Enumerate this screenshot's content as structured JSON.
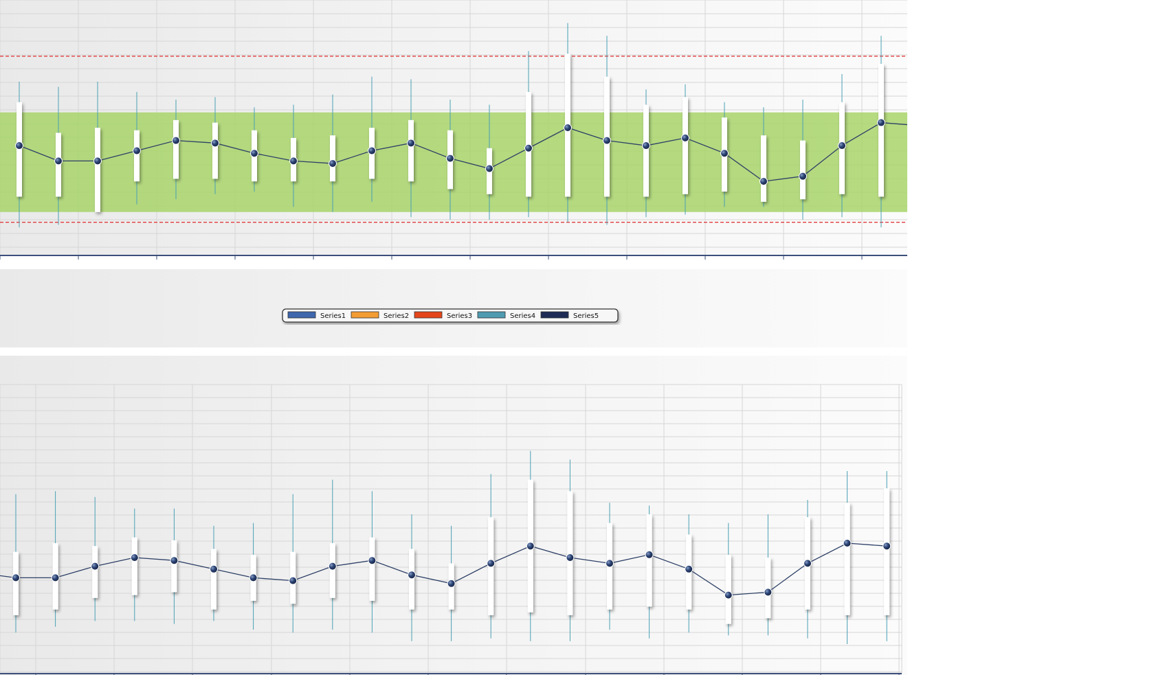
{
  "colors": {
    "band": "#a8d46a",
    "limit_line": "#e03c3c",
    "series_line": "#2d3f66",
    "marker_fill": "#2d4576",
    "whisker": "#4aa0b4",
    "box": "#ffffff",
    "grid": "#d6d6d6",
    "axis": "#3b4f7a"
  },
  "legend": {
    "items": [
      {
        "label": "Series1",
        "color": "#3f67ad"
      },
      {
        "label": "Series2",
        "color": "#f39c34"
      },
      {
        "label": "Series3",
        "color": "#e4461b"
      },
      {
        "label": "Series4",
        "color": "#4e9bb0"
      },
      {
        "label": "Series5",
        "color": "#1f2b55"
      }
    ]
  },
  "chart_data": [
    {
      "type": "line",
      "series_type": "box-plot with mean line",
      "x": [
        1,
        2,
        3,
        4,
        5,
        6,
        7,
        8,
        9,
        10,
        11,
        12,
        13,
        14,
        15,
        16,
        17,
        18,
        19,
        20,
        21,
        22,
        23
      ],
      "ylim": [
        0,
        100
      ],
      "grid": true,
      "band": [
        17,
        56
      ],
      "limits": [
        13,
        78
      ],
      "series": [
        {
          "role": "mean",
          "values": [
            43,
            37,
            37,
            41,
            45,
            44,
            40,
            37,
            36,
            41,
            44,
            38,
            34,
            42,
            50,
            45,
            43,
            46,
            40,
            29,
            31,
            43,
            52
          ]
        },
        {
          "role": "box_low",
          "values": [
            23,
            23,
            17,
            29,
            30,
            30,
            29,
            29,
            29,
            30,
            29,
            26,
            24,
            23,
            23,
            23,
            23,
            24,
            25,
            21,
            22,
            24,
            23
          ]
        },
        {
          "role": "box_high",
          "values": [
            60,
            48,
            50,
            49,
            53,
            52,
            49,
            46,
            47,
            50,
            53,
            49,
            42,
            64,
            79,
            70,
            59,
            62,
            54,
            47,
            45,
            60,
            75
          ]
        },
        {
          "role": "whisker_low",
          "values": [
            11,
            12,
            19,
            20,
            22,
            24,
            25,
            19,
            17,
            21,
            15,
            14,
            14,
            15,
            13,
            12,
            15,
            16,
            19,
            19,
            14,
            15,
            11
          ]
        },
        {
          "role": "whisker_high",
          "values": [
            68,
            66,
            68,
            64,
            61,
            62,
            58,
            59,
            63,
            70,
            69,
            61,
            59,
            80,
            91,
            86,
            65,
            67,
            60,
            58,
            61,
            71,
            86
          ]
        }
      ]
    },
    {
      "type": "line",
      "series_type": "box-plot with mean line",
      "x": [
        1,
        2,
        3,
        4,
        5,
        6,
        7,
        8,
        9,
        10,
        11,
        12,
        13,
        14,
        15,
        16,
        17,
        18,
        19,
        20,
        21,
        22,
        23
      ],
      "ylim": [
        0,
        100
      ],
      "grid": true,
      "series": [
        {
          "role": "mean",
          "values": [
            33,
            33,
            37,
            40,
            39,
            36,
            33,
            32,
            37,
            39,
            34,
            31,
            38,
            44,
            40,
            38,
            41,
            36,
            27,
            28,
            38,
            45,
            44
          ]
        },
        {
          "role": "box_low",
          "values": [
            20,
            22,
            26,
            27,
            28,
            22,
            25,
            24,
            26,
            25,
            22,
            22,
            20,
            21,
            20,
            22,
            23,
            22,
            17,
            19,
            22,
            20,
            20
          ]
        },
        {
          "role": "box_high",
          "values": [
            42,
            45,
            44,
            47,
            46,
            43,
            41,
            42,
            45,
            47,
            43,
            38,
            54,
            67,
            63,
            52,
            55,
            48,
            41,
            40,
            54,
            59,
            64
          ]
        },
        {
          "role": "whisker_low",
          "values": [
            14,
            16,
            18,
            18,
            17,
            18,
            15,
            14,
            15,
            14,
            11,
            11,
            12,
            11,
            11,
            15,
            12,
            14,
            13,
            13,
            12,
            10,
            11
          ]
        },
        {
          "role": "whisker_high",
          "values": [
            62,
            63,
            61,
            57,
            57,
            51,
            52,
            62,
            67,
            63,
            55,
            51,
            69,
            77,
            74,
            59,
            58,
            55,
            52,
            55,
            60,
            70,
            70
          ]
        }
      ]
    }
  ]
}
